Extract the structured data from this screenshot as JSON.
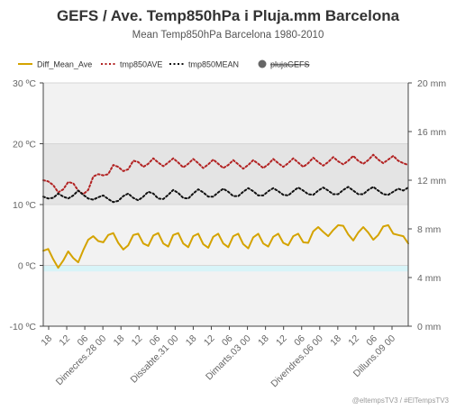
{
  "chart_data": {
    "type": "line",
    "title": "GEFS / Ave. Temp850hPa i Pluja.mm Barcelona",
    "subtitle": "Mean Temp850hPa Barcelona 1980-2010",
    "credit": "@eltempsTV3 / #ElTempsTV3",
    "yaxis_left": {
      "unit": "ºC",
      "range": [
        -10,
        30
      ],
      "ticks": [
        "30 ºC",
        "20 ºC",
        "10 ºC",
        "0 ºC",
        "-10 ºC"
      ],
      "values": [
        30,
        20,
        10,
        0,
        -10
      ]
    },
    "yaxis_right": {
      "unit": "mm",
      "range": [
        0,
        20
      ],
      "ticks": [
        "20 mm",
        "16 mm",
        "12 mm",
        "8 mm",
        "4 mm",
        "0 mm"
      ],
      "values": [
        20,
        16,
        12,
        8,
        4,
        0
      ]
    },
    "x_ticks": [
      "18",
      "12",
      "06",
      "Dimecres.28 00",
      "18",
      "12",
      "06",
      "Dissabte.31 00",
      "18",
      "12",
      "06",
      "Dimarts.03 00",
      "18",
      "12",
      "06",
      "Divendres.06 00",
      "18",
      "12",
      "06",
      "Dilluns.09 00"
    ],
    "legend": [
      {
        "name": "Diff_Mean_Ave",
        "color": "#d4a300",
        "style": "solid"
      },
      {
        "name": "tmp850AVE",
        "color": "#b22222",
        "style": "dotted"
      },
      {
        "name": "tmp850MEAN",
        "color": "#111111",
        "style": "dotted"
      },
      {
        "name": "plujaGEFS",
        "color": "#666666",
        "style": "circle",
        "hidden": true
      }
    ],
    "bands": [
      {
        "from": 10,
        "to": 20,
        "color": "#e4e4e4"
      },
      {
        "from": -1,
        "to": 0,
        "color": "#d8f4f8"
      }
    ],
    "x_count": 74,
    "series": [
      {
        "name": "tmp850AVE",
        "values": [
          14.0,
          13.8,
          13.2,
          12.0,
          12.5,
          13.7,
          13.5,
          12.3,
          11.7,
          12.4,
          14.6,
          15.0,
          14.8,
          15.0,
          16.5,
          16.2,
          15.5,
          15.8,
          17.2,
          17.0,
          16.2,
          16.7,
          17.6,
          16.9,
          16.3,
          16.9,
          17.6,
          16.9,
          16.1,
          16.7,
          17.5,
          16.8,
          16.0,
          16.6,
          17.4,
          16.7,
          16.0,
          16.5,
          17.3,
          16.6,
          15.9,
          16.5,
          17.3,
          16.7,
          16.0,
          16.6,
          17.5,
          16.8,
          16.2,
          16.8,
          17.6,
          16.9,
          16.2,
          16.8,
          17.7,
          17.0,
          16.4,
          17.0,
          17.8,
          17.1,
          16.6,
          17.2,
          18.0,
          17.2,
          16.7,
          17.3,
          18.2,
          17.4,
          16.8,
          17.4,
          18.0,
          17.2,
          16.8,
          16.5
        ]
      },
      {
        "name": "tmp850MEAN",
        "values": [
          11.3,
          11.0,
          11.1,
          11.8,
          11.3,
          11.0,
          11.5,
          12.3,
          11.6,
          11.0,
          10.8,
          11.2,
          11.5,
          10.9,
          10.4,
          10.6,
          11.4,
          11.8,
          11.1,
          10.7,
          11.3,
          12.1,
          11.8,
          11.0,
          10.9,
          11.6,
          12.4,
          11.9,
          11.1,
          11.0,
          11.8,
          12.5,
          12.0,
          11.3,
          11.3,
          12.0,
          12.6,
          12.1,
          11.4,
          11.4,
          12.1,
          12.7,
          12.2,
          11.5,
          11.5,
          12.2,
          12.7,
          12.2,
          11.6,
          11.5,
          12.2,
          12.8,
          12.3,
          11.7,
          11.6,
          12.3,
          12.8,
          12.3,
          11.7,
          11.7,
          12.4,
          12.9,
          12.3,
          11.7,
          11.7,
          12.4,
          12.9,
          12.3,
          11.7,
          11.6,
          12.1,
          12.6,
          12.3,
          12.8
        ]
      },
      {
        "name": "Diff_Mean_Ave",
        "values": [
          2.4,
          2.7,
          1.0,
          -0.4,
          0.8,
          2.3,
          1.2,
          0.5,
          2.5,
          4.2,
          4.8,
          4.0,
          3.8,
          5.0,
          5.3,
          3.7,
          2.6,
          3.3,
          5.0,
          5.2,
          3.6,
          3.2,
          4.9,
          5.3,
          3.6,
          3.1,
          5.0,
          5.3,
          3.6,
          3.0,
          4.8,
          5.2,
          3.5,
          2.9,
          4.7,
          5.2,
          3.6,
          3.0,
          4.8,
          5.2,
          3.5,
          2.8,
          4.6,
          5.2,
          3.6,
          3.1,
          4.7,
          5.2,
          3.7,
          3.3,
          4.8,
          5.2,
          3.8,
          3.7,
          5.6,
          6.3,
          5.5,
          4.8,
          5.8,
          6.6,
          6.5,
          5.1,
          4.1,
          5.4,
          6.3,
          5.4,
          4.2,
          5.0,
          6.4,
          6.6,
          5.2,
          5.0,
          4.8,
          3.6
        ]
      }
    ]
  }
}
